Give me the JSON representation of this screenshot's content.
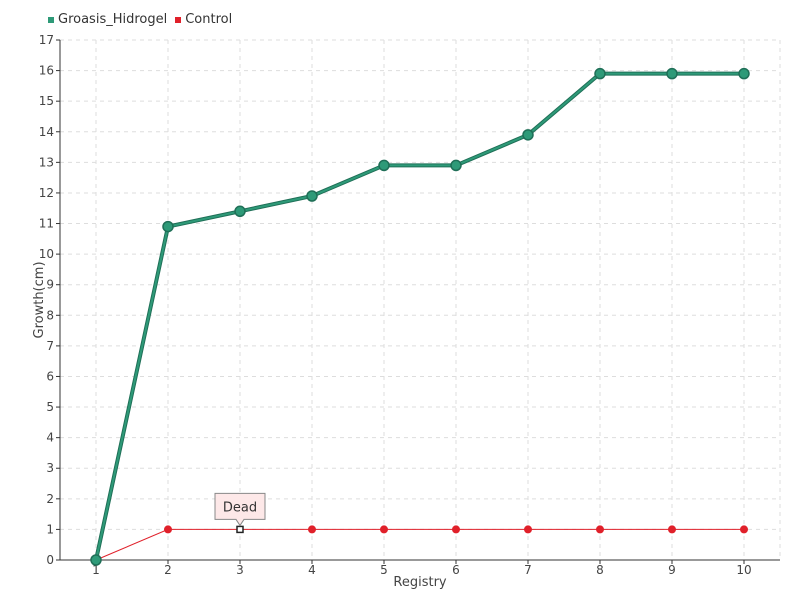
{
  "chart_data": {
    "type": "line",
    "title": "",
    "xlabel": "Registry",
    "ylabel": "Growth(cm)",
    "x": [
      1,
      2,
      3,
      4,
      5,
      6,
      7,
      8,
      9,
      10
    ],
    "xlim": [
      0.5,
      10.5
    ],
    "ylim": [
      0,
      17
    ],
    "y_ticks": [
      0,
      1,
      2,
      3,
      4,
      5,
      6,
      7,
      8,
      9,
      10,
      11,
      12,
      13,
      14,
      15,
      16,
      17
    ],
    "grid": true,
    "legend_position": "top-left",
    "series": [
      {
        "name": "Groasis_Hidrogel",
        "color": "#2e9a78",
        "values": [
          0,
          10.9,
          11.4,
          11.9,
          12.9,
          12.9,
          13.9,
          15.9,
          15.9,
          15.9
        ]
      },
      {
        "name": "Control",
        "color": "#e0202a",
        "values": [
          0,
          1,
          1,
          1,
          1,
          1,
          1,
          1,
          1,
          1
        ]
      }
    ],
    "annotations": [
      {
        "text": "Dead",
        "series": "Control",
        "x": 3,
        "y": 1
      }
    ]
  }
}
